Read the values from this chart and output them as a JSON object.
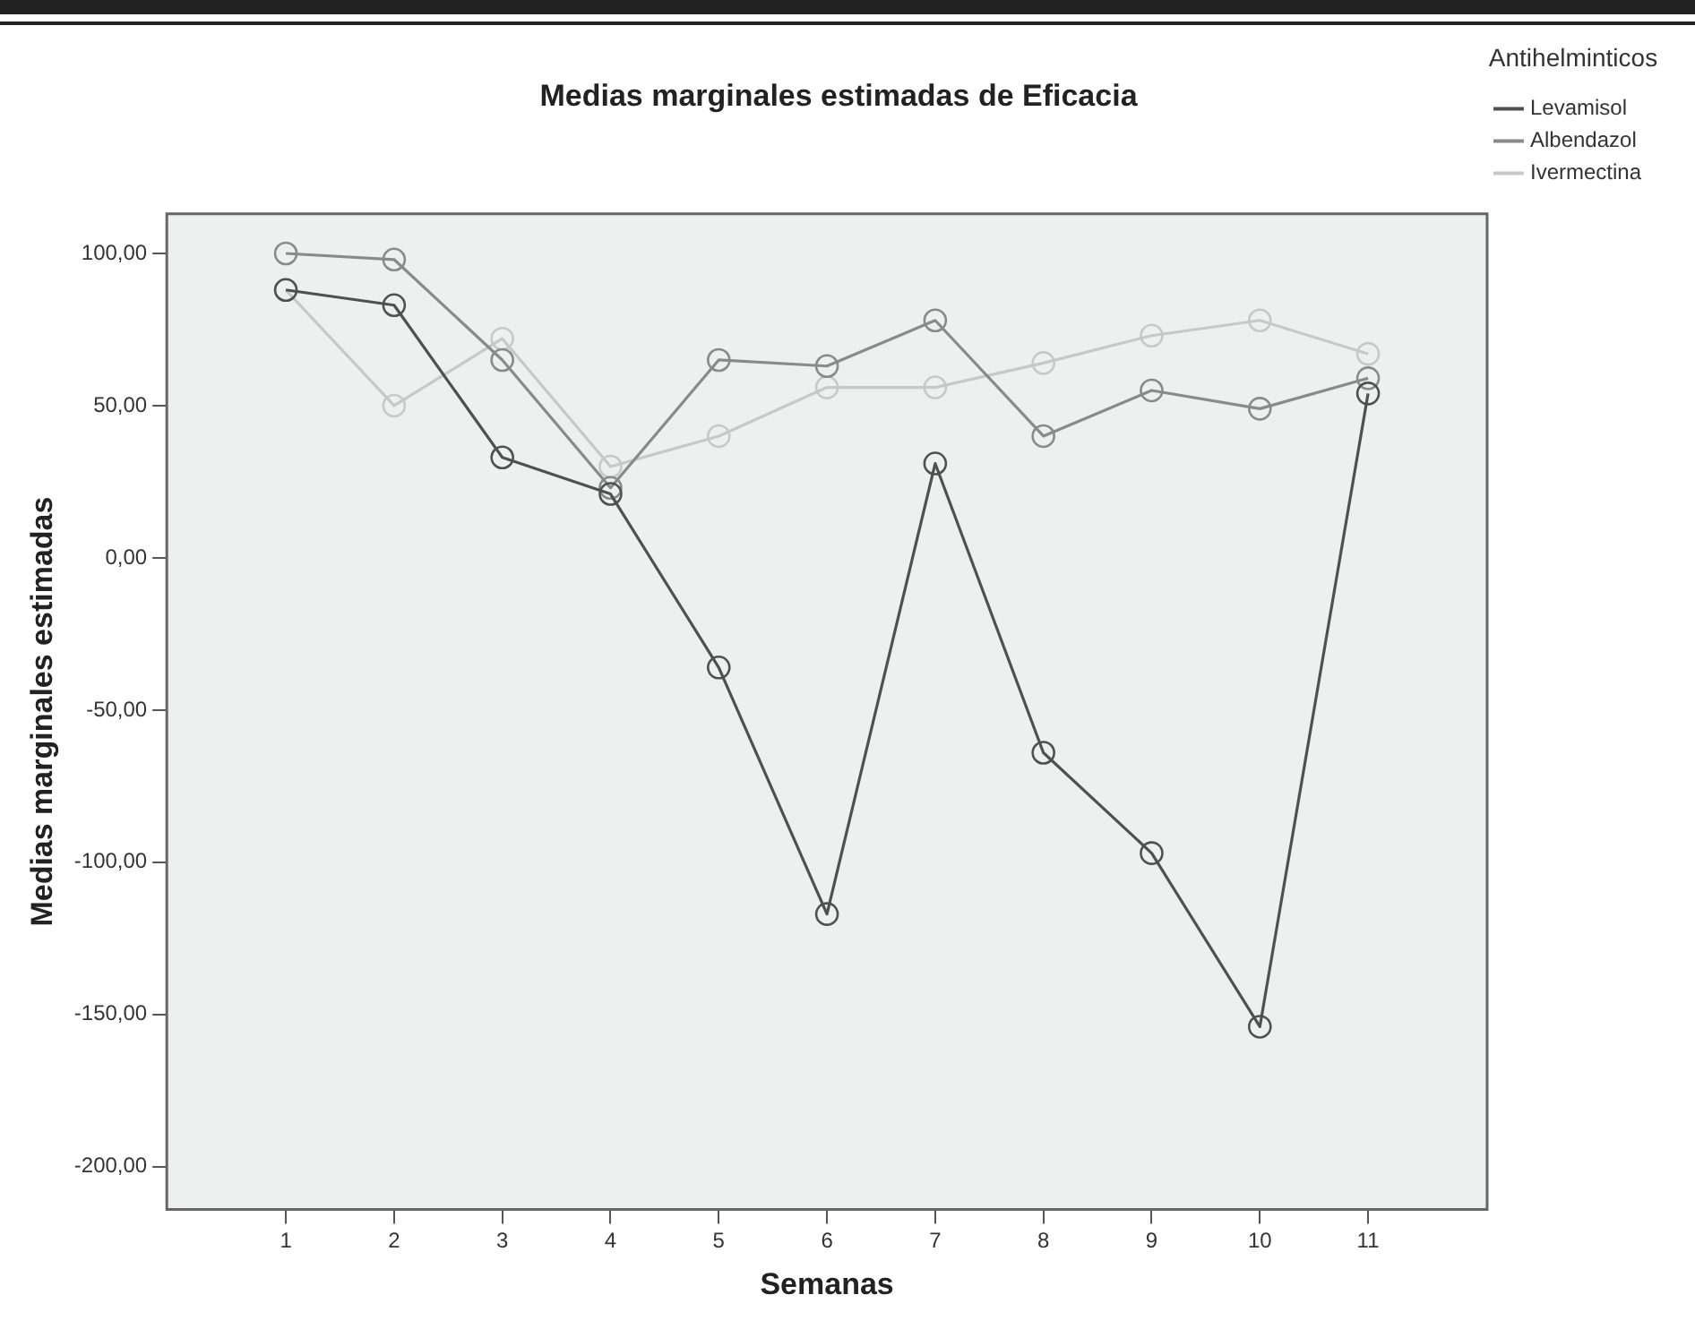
{
  "chart_data": {
    "type": "line",
    "title": "Medias marginales estimadas de Eficacia",
    "xlabel": "Semanas",
    "ylabel": "Medias marginales estimadas",
    "legend_title": "Antihelminticos",
    "x": [
      1,
      2,
      3,
      4,
      5,
      6,
      7,
      8,
      9,
      10,
      11
    ],
    "series": [
      {
        "name": "Levamisol",
        "color": "#505050",
        "values": [
          88,
          83,
          33,
          21,
          -36,
          -117,
          31,
          -64,
          -97,
          -154,
          54
        ]
      },
      {
        "name": "Albendazol",
        "color": "#8a8a8a",
        "values": [
          100,
          98,
          65,
          23,
          65,
          63,
          78,
          40,
          55,
          49,
          59
        ]
      },
      {
        "name": "Ivermectina",
        "color": "#c8c8c8",
        "values": [
          88,
          50,
          72,
          30,
          40,
          56,
          56,
          64,
          73,
          78,
          67
        ]
      }
    ],
    "xlim": [
      -0.1,
      12.1
    ],
    "xticks": [
      1,
      2,
      3,
      4,
      5,
      6,
      7,
      8,
      9,
      10,
      11
    ],
    "ylim": [
      -214,
      113
    ],
    "yticks": [
      {
        "value": -200,
        "label": "-200,00"
      },
      {
        "value": -150,
        "label": "-150,00"
      },
      {
        "value": -100,
        "label": "-100,00"
      },
      {
        "value": -50,
        "label": "-50,00"
      },
      {
        "value": 0,
        "label": "0,00"
      },
      {
        "value": 50,
        "label": "50,00"
      },
      {
        "value": 100,
        "label": "100,00"
      }
    ],
    "grid": false,
    "legend": "right",
    "marker": "circle",
    "line_style": "solid"
  }
}
